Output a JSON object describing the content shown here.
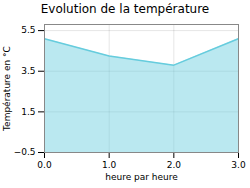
{
  "chart_data": {
    "type": "area",
    "title": "Evolution de la température",
    "x_label": "heure par heure",
    "y_label": "Température en °C",
    "x": [
      0,
      1,
      2,
      3
    ],
    "values": [
      5.1,
      4.25,
      3.8,
      5.1
    ],
    "color": "#66ccdd",
    "xlim": [
      0,
      3
    ],
    "xticks": [
      0,
      1,
      2,
      3
    ],
    "ylim": [
      -0.5,
      5.8
    ],
    "yticks": [
      -0.5,
      1.5,
      3.5,
      5.5
    ],
    "grid": true
  }
}
